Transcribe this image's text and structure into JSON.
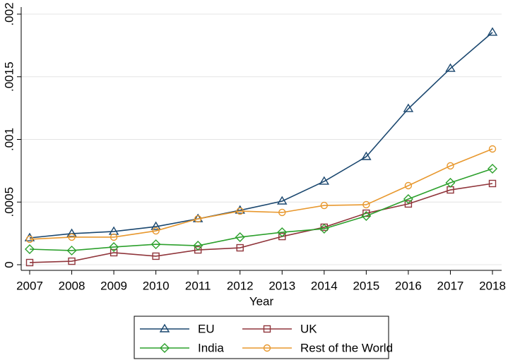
{
  "chart_data": {
    "type": "line",
    "x_label": "Year",
    "x": [
      2007,
      2008,
      2009,
      2010,
      2011,
      2012,
      2013,
      2014,
      2015,
      2016,
      2017,
      2018
    ],
    "xlim": [
      2007,
      2018
    ],
    "xticks": [
      2007,
      2008,
      2009,
      2010,
      2011,
      2012,
      2013,
      2014,
      2015,
      2016,
      2017,
      2018
    ],
    "ylim": [
      0,
      0.002
    ],
    "yticks": [
      0,
      {
        "value": 0.0005,
        "label": ".0005"
      },
      {
        "value": 0.001,
        "label": ".001"
      },
      {
        "value": 0.0015,
        "label": ".0015"
      },
      {
        "value": 0.002,
        "label": ".002"
      }
    ],
    "grid": true,
    "legend": "bottom",
    "series": [
      {
        "name": "EU",
        "color": "#1a476f",
        "marker": "triangle",
        "values": [
          0.000214,
          0.000248,
          0.000265,
          0.000304,
          0.000366,
          0.000434,
          0.000507,
          0.000665,
          0.000862,
          0.001245,
          0.001566,
          0.001854
        ]
      },
      {
        "name": "UK",
        "color": "#90353b",
        "marker": "square",
        "values": [
          1.7e-05,
          2.8e-05,
          9.6e-05,
          6.8e-05,
          0.000118,
          0.000135,
          0.000225,
          0.000299,
          0.000411,
          0.000485,
          0.000597,
          0.000648
        ]
      },
      {
        "name": "India",
        "color": "#2ca02c",
        "marker": "diamond",
        "values": [
          0.000124,
          0.000113,
          0.000141,
          0.000163,
          0.000152,
          0.00022,
          0.000259,
          0.000287,
          0.000389,
          0.000524,
          0.000654,
          0.000766
        ]
      },
      {
        "name": "Rest of the World",
        "color": "#e8982e",
        "marker": "circle",
        "values": [
          0.000203,
          0.00022,
          0.00022,
          0.00027,
          0.000366,
          0.000428,
          0.000417,
          0.000473,
          0.000479,
          0.000631,
          0.000789,
          0.000924
        ]
      }
    ]
  }
}
